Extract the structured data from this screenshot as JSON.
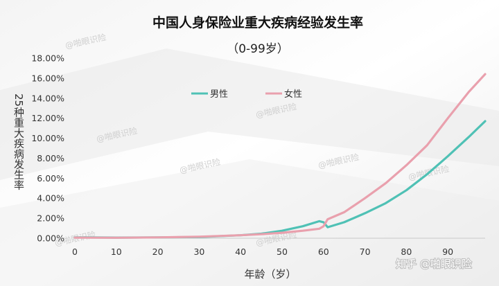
{
  "chart_data": {
    "type": "line",
    "title": "中国人身保险业重大疾病经验发生率",
    "subtitle": "（0-99岁）",
    "xlabel": "年龄（岁）",
    "ylabel": "25种重大疾病发生率",
    "xlim": [
      0,
      99
    ],
    "ylim": [
      0,
      18
    ],
    "x_ticks": [
      "0",
      "10",
      "20",
      "30",
      "40",
      "50",
      "60",
      "70",
      "80",
      "90"
    ],
    "y_ticks": [
      "0.00%",
      "2.00%",
      "4.00%",
      "6.00%",
      "8.00%",
      "10.00%",
      "12.00%",
      "14.00%",
      "16.00%",
      "18.00%"
    ],
    "grid": false,
    "legend_position": "top-center",
    "series": [
      {
        "name": "男性",
        "color": "#4fc1b5",
        "points": [
          [
            0,
            0.08
          ],
          [
            10,
            0.06
          ],
          [
            20,
            0.08
          ],
          [
            30,
            0.12
          ],
          [
            40,
            0.3
          ],
          [
            45,
            0.45
          ],
          [
            50,
            0.75
          ],
          [
            55,
            1.2
          ],
          [
            59,
            1.7
          ],
          [
            60,
            1.6
          ],
          [
            61,
            1.1
          ],
          [
            65,
            1.6
          ],
          [
            70,
            2.5
          ],
          [
            75,
            3.5
          ],
          [
            80,
            4.8
          ],
          [
            85,
            6.4
          ],
          [
            90,
            8.2
          ],
          [
            95,
            10.1
          ],
          [
            99,
            11.7
          ]
        ]
      },
      {
        "name": "女性",
        "color": "#e9a0ad",
        "points": [
          [
            0,
            0.06
          ],
          [
            10,
            0.05
          ],
          [
            20,
            0.08
          ],
          [
            30,
            0.15
          ],
          [
            40,
            0.3
          ],
          [
            45,
            0.4
          ],
          [
            50,
            0.55
          ],
          [
            55,
            0.75
          ],
          [
            59,
            0.95
          ],
          [
            60,
            1.2
          ],
          [
            61,
            1.9
          ],
          [
            65,
            2.6
          ],
          [
            70,
            4.0
          ],
          [
            75,
            5.5
          ],
          [
            80,
            7.3
          ],
          [
            85,
            9.3
          ],
          [
            90,
            12.0
          ],
          [
            95,
            14.6
          ],
          [
            99,
            16.4
          ]
        ]
      }
    ]
  },
  "watermark": {
    "text": "@啪眼识险",
    "credit": "知乎 @啪眼识险"
  }
}
